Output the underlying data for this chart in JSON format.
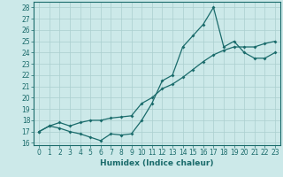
{
  "xlabel": "Humidex (Indice chaleur)",
  "xlim": [
    -0.5,
    23.5
  ],
  "ylim": [
    15.8,
    28.5
  ],
  "yticks": [
    16,
    17,
    18,
    19,
    20,
    21,
    22,
    23,
    24,
    25,
    26,
    27,
    28
  ],
  "xticks": [
    0,
    1,
    2,
    3,
    4,
    5,
    6,
    7,
    8,
    9,
    10,
    11,
    12,
    13,
    14,
    15,
    16,
    17,
    18,
    19,
    20,
    21,
    22,
    23
  ],
  "bg_color": "#cce9e9",
  "line_color": "#1a6b6b",
  "grid_color": "#aacfcf",
  "line1_x": [
    0,
    1,
    2,
    3,
    4,
    5,
    6,
    7,
    8,
    9,
    10,
    11,
    12,
    13,
    14,
    15,
    16,
    17,
    18,
    19,
    20,
    21,
    22,
    23
  ],
  "line1_y": [
    17.0,
    17.5,
    17.3,
    17.0,
    16.8,
    16.5,
    16.2,
    16.8,
    16.7,
    16.8,
    18.0,
    19.5,
    21.5,
    22.0,
    24.5,
    25.5,
    26.5,
    28.0,
    24.5,
    25.0,
    24.0,
    23.5,
    23.5,
    24.0
  ],
  "line2_x": [
    0,
    1,
    2,
    3,
    4,
    5,
    6,
    7,
    8,
    9,
    10,
    11,
    12,
    13,
    14,
    15,
    16,
    17,
    18,
    19,
    20,
    21,
    22,
    23
  ],
  "line2_y": [
    17.0,
    17.5,
    17.8,
    17.5,
    17.8,
    18.0,
    18.0,
    18.2,
    18.3,
    18.4,
    19.5,
    20.0,
    20.8,
    21.2,
    21.8,
    22.5,
    23.2,
    23.8,
    24.2,
    24.5,
    24.5,
    24.5,
    24.8,
    25.0
  ],
  "tick_fontsize": 5.5,
  "xlabel_fontsize": 6.5
}
